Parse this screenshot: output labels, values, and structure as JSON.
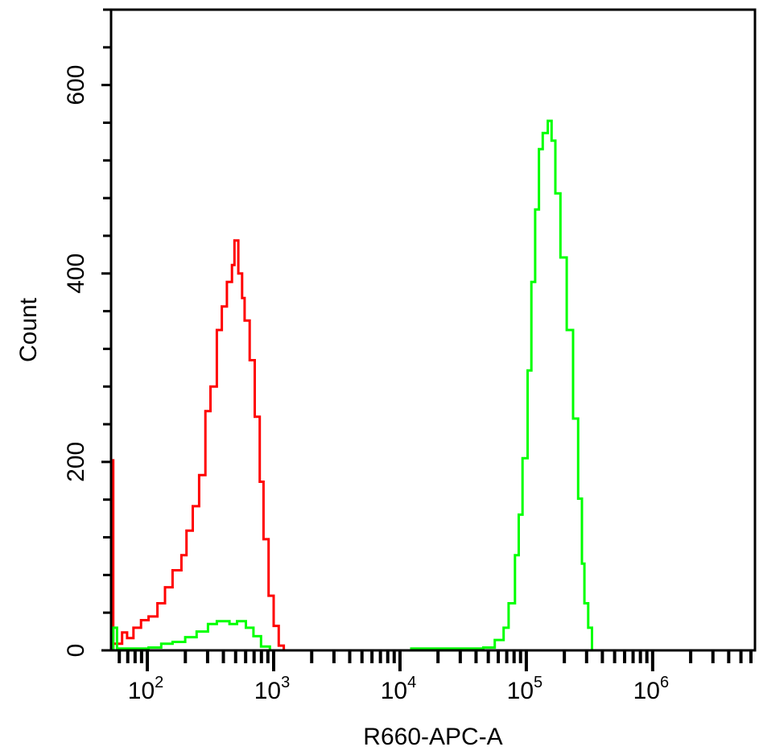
{
  "chart_data": {
    "type": "line",
    "subtype": "flow-cytometry-histogram",
    "xlabel": "R660-APC-A",
    "ylabel": "Count",
    "xscale": "log10",
    "xlim_log10": [
      1.713,
      6.81
    ],
    "ylim": [
      0,
      680
    ],
    "x_major_ticks": [
      {
        "exp": 2,
        "base": "10",
        "sup": "2"
      },
      {
        "exp": 3,
        "base": "10",
        "sup": "3"
      },
      {
        "exp": 4,
        "base": "10",
        "sup": "4"
      },
      {
        "exp": 5,
        "base": "10",
        "sup": "5"
      },
      {
        "exp": 6,
        "base": "10",
        "sup": "6"
      }
    ],
    "y_ticks": [
      0,
      200,
      400,
      600
    ],
    "y_minor_step": 40,
    "grid": false,
    "series": [
      {
        "name": "red",
        "color": "#ff0000",
        "log10_x": [
          1.73,
          1.73,
          1.73,
          1.76,
          1.8,
          1.84,
          1.89,
          1.95,
          2.01,
          2.08,
          2.14,
          2.2,
          2.27,
          2.31,
          2.36,
          2.41,
          2.46,
          2.5,
          2.55,
          2.59,
          2.63,
          2.67,
          2.69,
          2.72,
          2.75,
          2.77,
          2.81,
          2.85,
          2.89,
          2.92,
          2.96,
          3.0,
          3.04,
          3.08
        ],
        "count": [
          0,
          203,
          7,
          7,
          19,
          13,
          24,
          32,
          36,
          50,
          67,
          85,
          101,
          127,
          153,
          186,
          254,
          280,
          340,
          365,
          391,
          409,
          435,
          400,
          374,
          350,
          308,
          248,
          179,
          118,
          58,
          26,
          5,
          0
        ]
      },
      {
        "name": "green-low",
        "color": "#00ff00",
        "log10_x": [
          1.73,
          1.73,
          1.76,
          1.89,
          2.01,
          2.11,
          2.2,
          2.3,
          2.39,
          2.48,
          2.55,
          2.65,
          2.71,
          2.78,
          2.84,
          2.9,
          2.97
        ],
        "count": [
          0,
          24,
          2,
          2,
          3,
          7,
          9,
          14,
          20,
          28,
          31,
          28,
          31,
          24,
          15,
          4,
          0
        ]
      },
      {
        "name": "green-high",
        "color": "#00ff00",
        "log10_x": [
          4.08,
          4.4,
          4.66,
          4.75,
          4.82,
          4.86,
          4.91,
          4.94,
          4.97,
          5.01,
          5.04,
          5.07,
          5.1,
          5.13,
          5.17,
          5.2,
          5.23,
          5.27,
          5.32,
          5.37,
          5.41,
          5.44,
          5.46,
          5.49,
          5.52
        ],
        "count": [
          2,
          2,
          3,
          11,
          24,
          50,
          101,
          144,
          204,
          297,
          391,
          468,
          532,
          549,
          562,
          541,
          485,
          417,
          340,
          246,
          161,
          92,
          50,
          24,
          0
        ]
      }
    ]
  }
}
